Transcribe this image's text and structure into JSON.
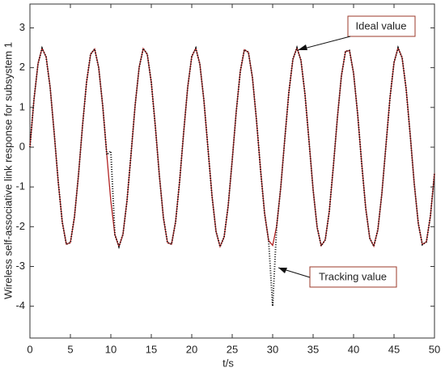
{
  "chart_data": {
    "type": "line",
    "xlabel": "t/s",
    "ylabel": "Wireless self-associative link response for subsystem 1",
    "x": [
      0,
      0.5,
      1,
      1.5,
      2,
      2.5,
      3,
      3.5,
      4,
      4.5,
      5,
      5.5,
      6,
      6.5,
      7,
      7.5,
      8,
      8.5,
      9,
      9.5,
      10,
      10.5,
      11,
      11.5,
      12,
      12.5,
      13,
      13.5,
      14,
      14.5,
      15,
      15.5,
      16,
      16.5,
      17,
      17.5,
      18,
      18.5,
      19,
      19.5,
      20,
      20.5,
      21,
      21.5,
      22,
      22.5,
      23,
      23.5,
      24,
      24.5,
      25,
      25.5,
      26,
      26.5,
      27,
      27.5,
      28,
      28.5,
      29,
      29.5,
      30,
      30.5,
      31,
      31.5,
      32,
      32.5,
      33,
      33.5,
      34,
      34.5,
      35,
      35.5,
      36,
      36.5,
      37,
      37.5,
      38,
      38.5,
      39,
      39.5,
      40,
      40.5,
      41,
      41.5,
      42,
      42.5,
      43,
      43.5,
      44,
      44.5,
      45,
      45.5,
      46,
      46.5,
      47,
      47.5,
      48,
      48.5,
      49,
      49.5,
      50
    ],
    "series": [
      {
        "name": "Ideal value",
        "color": "#b22222",
        "style": "solid",
        "values": [
          0,
          1.2,
          2.1,
          2.49,
          2.27,
          1.5,
          0.35,
          -0.88,
          -1.89,
          -2.44,
          -2.4,
          -1.76,
          -0.7,
          0.54,
          1.64,
          2.34,
          2.47,
          2.0,
          1.03,
          -0.19,
          -1.36,
          -2.2,
          -2.5,
          -2.19,
          -1.34,
          -0.17,
          1.05,
          2.01,
          2.48,
          2.34,
          1.63,
          0.52,
          -0.72,
          -1.78,
          -2.4,
          -2.44,
          -1.88,
          -0.86,
          0.37,
          1.51,
          2.28,
          2.49,
          2.09,
          1.18,
          -0.02,
          -1.22,
          -2.12,
          -2.5,
          -2.26,
          -1.48,
          -0.33,
          0.9,
          1.91,
          2.45,
          2.39,
          1.75,
          0.68,
          -0.56,
          -1.66,
          -2.35,
          -2.47,
          -1.98,
          -1.01,
          0.21,
          1.38,
          2.21,
          2.5,
          2.18,
          1.32,
          0.14,
          -1.07,
          -2.02,
          -2.48,
          -2.33,
          -1.61,
          -0.49,
          0.74,
          1.8,
          2.41,
          2.43,
          1.86,
          0.84,
          -0.4,
          -1.53,
          -2.29,
          -2.49,
          -2.08,
          -1.16,
          0.04,
          1.24,
          2.13,
          2.5,
          2.25,
          1.46,
          0.31,
          -0.92,
          -1.92,
          -2.45,
          -2.38,
          -1.73,
          -0.66
        ]
      },
      {
        "name": "Tracking value",
        "color": "#111111",
        "style": "dotted",
        "values": [
          0,
          1.2,
          2.1,
          2.49,
          2.27,
          1.5,
          0.35,
          -0.88,
          -1.89,
          -2.44,
          -2.4,
          -1.76,
          -0.7,
          0.54,
          1.64,
          2.34,
          2.47,
          2.0,
          1.03,
          -0.19,
          -0.1,
          -2.2,
          -2.5,
          -2.19,
          -1.34,
          -0.17,
          1.05,
          2.01,
          2.48,
          2.34,
          1.63,
          0.52,
          -0.72,
          -1.78,
          -2.4,
          -2.44,
          -1.88,
          -0.86,
          0.37,
          1.51,
          2.28,
          2.49,
          2.09,
          1.18,
          -0.02,
          -1.22,
          -2.12,
          -2.5,
          -2.26,
          -1.48,
          -0.33,
          0.9,
          1.91,
          2.45,
          2.39,
          1.75,
          0.68,
          -0.56,
          -1.66,
          -2.35,
          -4.0,
          -1.98,
          -1.01,
          0.21,
          1.38,
          2.21,
          2.5,
          2.18,
          1.32,
          0.14,
          -1.07,
          -2.02,
          -2.48,
          -2.33,
          -1.61,
          -0.49,
          0.74,
          1.8,
          2.41,
          2.43,
          1.86,
          0.84,
          -0.4,
          -1.53,
          -2.29,
          -2.49,
          -2.08,
          -1.16,
          0.04,
          1.24,
          2.13,
          2.5,
          2.25,
          1.46,
          0.31,
          -0.92,
          -1.92,
          -2.45,
          -2.38,
          -1.73,
          -0.66
        ]
      }
    ],
    "xlim": [
      0,
      50
    ],
    "xticks": [
      0,
      5,
      10,
      15,
      20,
      25,
      30,
      35,
      40,
      45,
      50
    ],
    "ylim": [
      -4.8,
      3.6
    ],
    "yticks": [
      -4,
      -3,
      -2,
      -1,
      0,
      1,
      2,
      3
    ],
    "grid": false
  }
}
